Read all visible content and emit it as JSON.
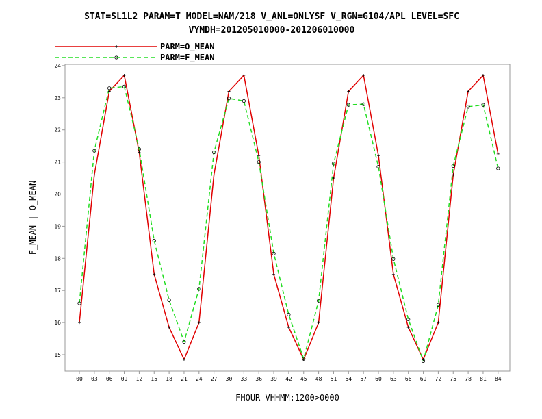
{
  "chart_data": {
    "type": "line",
    "title_line1": "STAT=SL1L2 PARAM=T MODEL=NAM/218 V_ANL=ONLYSF V_RGN=G104/APL LEVEL=SFC",
    "title_line2": "VYMDH=201205010000-201206010000",
    "xlabel": "FHOUR VHHMM:1200>0000",
    "ylabel": "F_MEAN | O_MEAN",
    "x": [
      "00",
      "03",
      "06",
      "09",
      "12",
      "15",
      "18",
      "21",
      "24",
      "27",
      "30",
      "33",
      "36",
      "39",
      "42",
      "45",
      "48",
      "51",
      "54",
      "57",
      "60",
      "63",
      "66",
      "69",
      "72",
      "75",
      "78",
      "81",
      "84"
    ],
    "ylim": [
      14.5,
      24
    ],
    "yticks": [
      "15",
      "16",
      "17",
      "18",
      "19",
      "20",
      "21",
      "22",
      "23",
      "24"
    ],
    "series": [
      {
        "name": "PARM=O_MEAN",
        "color": "#e00000",
        "dash": "solid",
        "marker": "plus",
        "values": [
          16.0,
          20.6,
          23.2,
          23.7,
          21.3,
          17.5,
          15.85,
          14.85,
          16.0,
          20.6,
          23.2,
          23.7,
          21.2,
          17.5,
          15.85,
          14.85,
          16.0,
          20.5,
          23.2,
          23.7,
          21.2,
          17.5,
          15.85,
          14.85,
          16.0,
          20.6,
          23.2,
          23.7,
          21.25
        ]
      },
      {
        "name": "PARM=F_MEAN",
        "color": "#22dd22",
        "dash": "dashed",
        "marker": "circle",
        "values": [
          16.6,
          21.35,
          23.3,
          23.35,
          21.4,
          18.55,
          16.7,
          15.4,
          17.05,
          21.3,
          22.98,
          22.9,
          21.0,
          18.15,
          16.25,
          14.87,
          16.68,
          20.95,
          22.78,
          22.8,
          20.85,
          17.98,
          16.1,
          14.8,
          16.55,
          20.88,
          22.72,
          22.78,
          20.8
        ]
      }
    ]
  }
}
